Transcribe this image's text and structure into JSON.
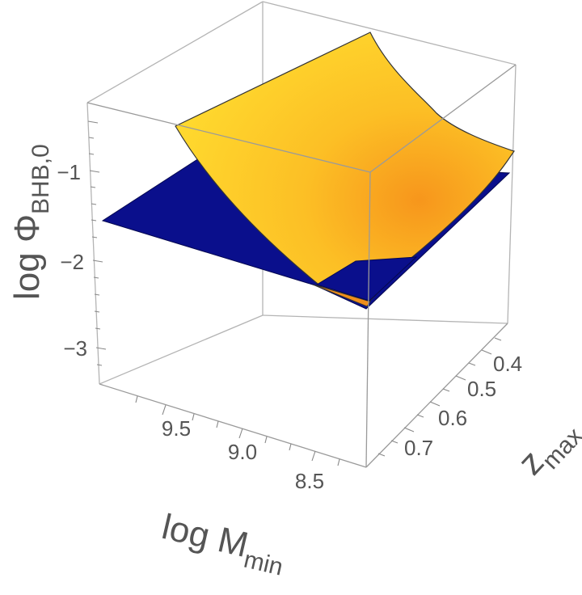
{
  "chart_data": {
    "type": "surface3d",
    "axes": {
      "x": {
        "label_main": "log M",
        "label_sub": "min",
        "ticks": [
          9.5,
          9.0,
          8.5
        ]
      },
      "y": {
        "label_main": "z",
        "label_sub": "max",
        "ticks": [
          0.4,
          0.5,
          0.6,
          0.7
        ]
      },
      "z": {
        "label_main": "log Φ",
        "label_sub": "BHB,0",
        "ticks": [
          -1,
          -2,
          -3
        ],
        "tick_labels": [
          "−1",
          "−2",
          "−3"
        ]
      }
    },
    "series": [
      {
        "kind": "plane",
        "color": "#0a0f8c"
      },
      {
        "kind": "curved-surface",
        "color_light": "#ffd427",
        "color_dark": "#f59a1b"
      }
    ],
    "box": true,
    "grid": false
  }
}
